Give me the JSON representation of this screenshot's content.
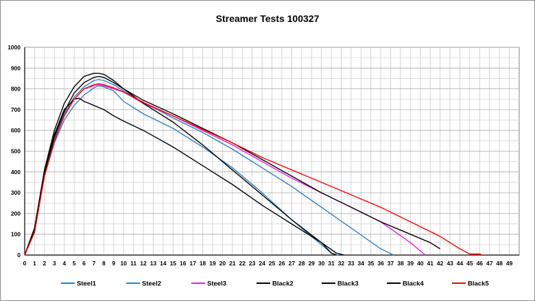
{
  "chart_data": {
    "type": "line",
    "title": "Streamer Tests 100327",
    "xlabel": "",
    "ylabel": "",
    "xlim": [
      0,
      50
    ],
    "ylim": [
      0,
      1000
    ],
    "x_ticks": [
      0,
      1,
      2,
      3,
      4,
      5,
      6,
      7,
      8,
      9,
      10,
      11,
      12,
      13,
      14,
      15,
      16,
      17,
      18,
      19,
      20,
      21,
      22,
      23,
      24,
      25,
      26,
      27,
      28,
      29,
      30,
      31,
      32,
      33,
      34,
      35,
      36,
      37,
      38,
      39,
      40,
      41,
      42,
      43,
      44,
      45,
      46,
      47,
      48,
      49
    ],
    "y_ticks": [
      0,
      100,
      200,
      300,
      400,
      500,
      600,
      700,
      800,
      900,
      1000
    ],
    "grid": true,
    "legend_position": "bottom",
    "series": [
      {
        "name": "Steel1",
        "color": "#2e7fc0",
        "x": [
          0,
          1,
          2,
          3,
          4,
          5,
          6,
          7,
          7.5,
          8,
          9,
          10,
          12,
          15,
          18,
          21,
          24,
          27,
          29.5,
          31,
          31.7
        ],
        "y": [
          0,
          120,
          380,
          540,
          650,
          720,
          770,
          805,
          815,
          810,
          790,
          740,
          680,
          610,
          520,
          420,
          300,
          170,
          70,
          10,
          0
        ]
      },
      {
        "name": "Steel2",
        "color": "#2e7fc0",
        "x": [
          0,
          1,
          2,
          3,
          4,
          5,
          6,
          7,
          7.5,
          8,
          9,
          10,
          12,
          15,
          18,
          21,
          24,
          27,
          30,
          33,
          36,
          37.3
        ],
        "y": [
          0,
          120,
          390,
          560,
          680,
          760,
          810,
          840,
          845,
          840,
          820,
          790,
          735,
          660,
          590,
          510,
          420,
          330,
          230,
          130,
          30,
          0
        ]
      },
      {
        "name": "Steel3",
        "color": "#e41ee4",
        "x": [
          0,
          1,
          2,
          3,
          4,
          5,
          6,
          7,
          7.5,
          8,
          9,
          10,
          12,
          15,
          18,
          21,
          24,
          27,
          30,
          33,
          36,
          39,
          40.5
        ],
        "y": [
          0,
          120,
          380,
          550,
          670,
          750,
          800,
          815,
          820,
          815,
          800,
          785,
          730,
          670,
          600,
          530,
          450,
          370,
          300,
          230,
          160,
          60,
          0
        ]
      },
      {
        "name": "Black2",
        "color": "#000000",
        "x": [
          0,
          1,
          2,
          3,
          4,
          5,
          5.5,
          6,
          7,
          8,
          9,
          10,
          12,
          15,
          18,
          21,
          24,
          27,
          30,
          31,
          31.5
        ],
        "y": [
          0,
          130,
          400,
          580,
          700,
          750,
          755,
          740,
          720,
          700,
          670,
          645,
          600,
          520,
          430,
          340,
          240,
          150,
          60,
          10,
          0
        ]
      },
      {
        "name": "Black3",
        "color": "#000000",
        "x": [
          0,
          1,
          2,
          3,
          4,
          5,
          6,
          7,
          7.5,
          8,
          9,
          10,
          12,
          15,
          18,
          21,
          24,
          27,
          30,
          31.5,
          32.3
        ],
        "y": [
          0,
          130,
          410,
          600,
          730,
          810,
          860,
          875,
          875,
          870,
          840,
          800,
          730,
          640,
          530,
          410,
          290,
          170,
          60,
          10,
          0
        ]
      },
      {
        "name": "Black4",
        "color": "#000000",
        "x": [
          0,
          1,
          2,
          3,
          4,
          5,
          6,
          7,
          7.5,
          8,
          9,
          10,
          12,
          15,
          18,
          21,
          24,
          27,
          30,
          33,
          36,
          39,
          41,
          42
        ],
        "y": [
          0,
          120,
          390,
          570,
          690,
          780,
          830,
          855,
          860,
          855,
          830,
          800,
          745,
          680,
          610,
          540,
          460,
          380,
          300,
          230,
          160,
          100,
          60,
          30
        ]
      },
      {
        "name": "Black5",
        "color": "#ff0000",
        "x": [
          0,
          1,
          2,
          3,
          4,
          5,
          6,
          7,
          7.5,
          8,
          9,
          10,
          12,
          15,
          18,
          21,
          24,
          27,
          30,
          33,
          36,
          39,
          42,
          44,
          45,
          46,
          46.3
        ],
        "y": [
          0,
          110,
          380,
          550,
          670,
          750,
          800,
          820,
          825,
          820,
          805,
          785,
          735,
          670,
          605,
          540,
          470,
          410,
          350,
          290,
          230,
          160,
          90,
          30,
          5,
          5,
          0
        ]
      }
    ]
  }
}
